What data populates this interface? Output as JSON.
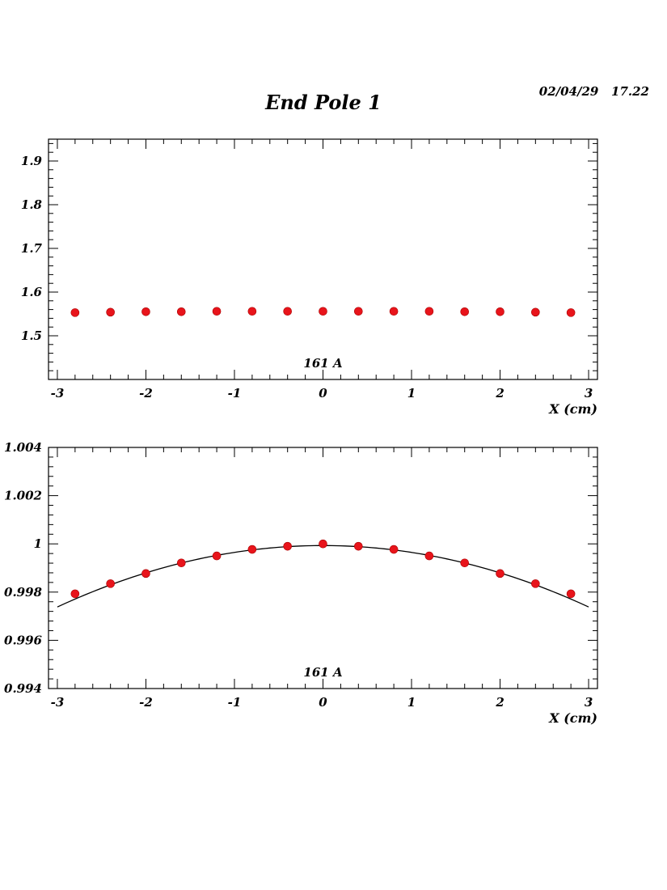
{
  "header": {
    "title": "End Pole 1",
    "timestamp": "02/04/29   17.22"
  },
  "chart_data": [
    {
      "type": "scatter",
      "title": "",
      "xlabel": "X (cm)",
      "ylabel": "",
      "annotation": "161 A",
      "xlim": [
        -3.1,
        3.1
      ],
      "ylim": [
        1.4,
        1.95
      ],
      "x_ticks": [
        -3,
        -2,
        -1,
        0,
        1,
        2,
        3
      ],
      "x_tick_labels": [
        "-3",
        "-2",
        "-1",
        "0",
        "1",
        "2",
        "3"
      ],
      "y_ticks": [
        1.5,
        1.6,
        1.7,
        1.8,
        1.9
      ],
      "y_tick_labels": [
        "1.5",
        "1.6",
        "1.7",
        "1.8",
        "1.9"
      ],
      "marker_color": "#e8141b",
      "series": [
        {
          "x": [
            -2.8,
            -2.4,
            -2.0,
            -1.6,
            -1.2,
            -0.8,
            -0.4,
            0.0,
            0.4,
            0.8,
            1.2,
            1.6,
            2.0,
            2.4,
            2.8
          ],
          "y": [
            1.553,
            1.554,
            1.555,
            1.555,
            1.556,
            1.556,
            1.556,
            1.556,
            1.556,
            1.556,
            1.556,
            1.555,
            1.555,
            1.554,
            1.553
          ]
        }
      ]
    },
    {
      "type": "scatter",
      "title": "",
      "xlabel": "X (cm)",
      "ylabel": "",
      "annotation": "161 A",
      "xlim": [
        -3.1,
        3.1
      ],
      "ylim": [
        0.994,
        1.004
      ],
      "x_ticks": [
        -3,
        -2,
        -1,
        0,
        1,
        2,
        3
      ],
      "x_tick_labels": [
        "-3",
        "-2",
        "-1",
        "0",
        "1",
        "2",
        "3"
      ],
      "y_ticks": [
        0.994,
        0.996,
        0.998,
        1.0,
        1.002,
        1.004
      ],
      "y_tick_labels": [
        "0.994",
        "0.996",
        "0.998",
        "1",
        "1.002",
        "1.004"
      ],
      "marker_color": "#e8141b",
      "series": [
        {
          "x": [
            -2.8,
            -2.4,
            -2.0,
            -1.6,
            -1.2,
            -0.8,
            -0.4,
            0.0,
            0.4,
            0.8,
            1.2,
            1.6,
            2.0,
            2.4,
            2.8
          ],
          "y": [
            0.99793,
            0.99835,
            0.99877,
            0.99921,
            0.9995,
            0.99977,
            0.9999,
            1.0,
            0.9999,
            0.99977,
            0.9995,
            0.99921,
            0.99877,
            0.99835,
            0.99793
          ]
        }
      ],
      "fit_curve": {
        "type": "quadratic",
        "x_range": [
          -3.0,
          3.0
        ],
        "coefficients": [
          0.99993,
          0.0,
          -0.000283
        ]
      }
    }
  ]
}
